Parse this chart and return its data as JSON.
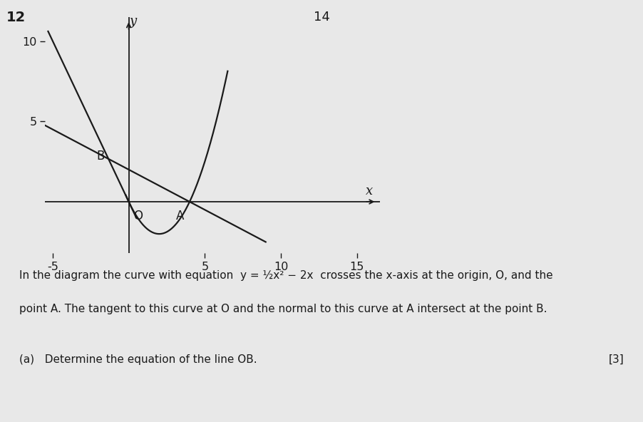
{
  "background_color": "#e8e8e8",
  "axes_bg_color": "#e8e8e8",
  "xlim": [
    -5.5,
    16.5
  ],
  "ylim": [
    -3.2,
    11.5
  ],
  "xticks": [
    -5,
    5,
    10,
    15
  ],
  "yticks": [
    5,
    10
  ],
  "xlabel": "x",
  "ylabel": "y",
  "curve_color": "#1a1a1a",
  "line_color": "#1a1a1a",
  "axis_color": "#1a1a1a",
  "label_color": "#1a1a1a",
  "question_number_top": "14",
  "question_number_left": "12",
  "O_label": "O",
  "A_label": "A",
  "B_label": "B",
  "point_A_x": 4,
  "point_B_x": -1.3333,
  "point_B_y": 2.6667,
  "body_line1": "In the diagram the curve with equation  y = ½x² − 2x  crosses the x-axis at the origin, O, and the",
  "body_line2": "point A. The tangent to this curve at O and the normal to this curve at A intersect at the point B.",
  "part_a_text": "(a)   Determine the equation of the line OB.",
  "part_a_marks": "[3]"
}
